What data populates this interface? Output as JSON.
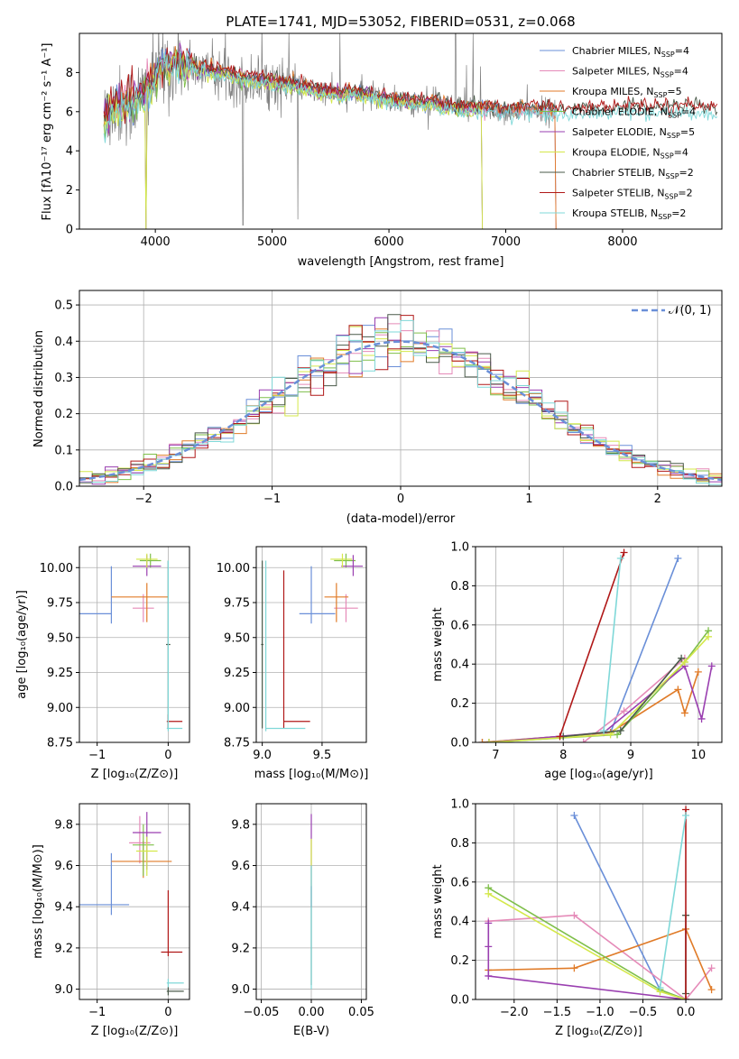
{
  "figure": {
    "colors": {
      "chabrier_miles": "#6a8fd8",
      "salpeter_miles": "#e58ab8",
      "kroupa_miles": "#e07b28",
      "chabrier_elodie": "#7fbf4a",
      "salpeter_elodie": "#9a3fb0",
      "kroupa_elodie": "#d4e84a",
      "chabrier_stelib": "#4a5a4a",
      "salpeter_stelib": "#b01818",
      "kroupa_stelib": "#7fd8d8",
      "data": "#808080"
    }
  },
  "chart_data": [
    {
      "id": "spectrum",
      "type": "line",
      "title": "PLATE=1741, MJD=53052, FIBERID=0531, z=0.068",
      "xlabel": "wavelength [Angstrom, rest frame]",
      "ylabel": "Flux [fλ10⁻¹⁷ erg cm⁻² s⁻¹ A⁻¹]",
      "xlim": [
        3350,
        8850
      ],
      "ylim": [
        0,
        10
      ],
      "xticks": [
        4000,
        5000,
        6000,
        7000,
        8000
      ],
      "yticks": [
        0,
        2,
        4,
        6,
        8
      ],
      "legend_position": "top-right",
      "series": [
        {
          "name": "Chabrier MILES, N_SSP=4",
          "key": "chabrier_miles"
        },
        {
          "name": "Salpeter MILES, N_SSP=4",
          "key": "salpeter_miles"
        },
        {
          "name": "Kroupa MILES, N_SSP=5",
          "key": "kroupa_miles"
        },
        {
          "name": "Chabrier ELODIE, N_SSP=4",
          "key": "chabrier_elodie"
        },
        {
          "name": "Salpeter ELODIE, N_SSP=5",
          "key": "salpeter_elodie"
        },
        {
          "name": "Kroupa ELODIE, N_SSP=4",
          "key": "kroupa_elodie"
        },
        {
          "name": "Chabrier STELIB, N_SSP=2",
          "key": "chabrier_stelib"
        },
        {
          "name": "Salpeter STELIB, N_SSP=2",
          "key": "salpeter_stelib"
        },
        {
          "name": "Kroupa STELIB, N_SSP=2",
          "key": "kroupa_stelib"
        }
      ],
      "legend_labels": [
        {
          "pre": "Chabrier MILES, N",
          "sub": "SSP",
          "post": "=4"
        },
        {
          "pre": "Salpeter MILES, N",
          "sub": "SSP",
          "post": "=4"
        },
        {
          "pre": "Kroupa MILES, N",
          "sub": "SSP",
          "post": "=5"
        },
        {
          "pre": "Chabrier ELODIE, N",
          "sub": "SSP",
          "post": "=4"
        },
        {
          "pre": "Salpeter ELODIE, N",
          "sub": "SSP",
          "post": "=5"
        },
        {
          "pre": "Kroupa ELODIE, N",
          "sub": "SSP",
          "post": "=4"
        },
        {
          "pre": "Chabrier STELIB, N",
          "sub": "SSP",
          "post": "=2"
        },
        {
          "pre": "Salpeter STELIB, N",
          "sub": "SSP",
          "post": "=2"
        },
        {
          "pre": "Kroupa STELIB, N",
          "sub": "SSP",
          "post": "=2"
        }
      ],
      "model_continuum": {
        "x": [
          3560,
          3650,
          3800,
          3950,
          4050,
          4200,
          4400,
          4600,
          4800,
          5000,
          5200,
          5400,
          5600,
          5800,
          6000,
          6200,
          6400,
          6600,
          6800,
          7000,
          7200,
          7400,
          7600,
          7800,
          8000,
          8200,
          8400,
          8600,
          8800
        ],
        "y": [
          5.6,
          6.2,
          6.4,
          7.2,
          8.2,
          8.4,
          8.1,
          7.9,
          7.6,
          7.5,
          7.3,
          7.0,
          6.9,
          6.9,
          6.6,
          6.4,
          6.4,
          6.1,
          6.1,
          6.0,
          6.1,
          6.0,
          6.0,
          6.0,
          6.1,
          6.1,
          6.1,
          6.1,
          6.0
        ]
      }
    },
    {
      "id": "residuals",
      "type": "line",
      "xlabel": "(data-model)/error",
      "ylabel": "Normed distribution",
      "xlim": [
        -2.5,
        2.5
      ],
      "ylim": [
        0,
        0.54
      ],
      "xticks": [
        -2,
        -1,
        0,
        1,
        2
      ],
      "yticks": [
        0.0,
        0.1,
        0.2,
        0.3,
        0.4,
        0.5
      ],
      "grid": true,
      "legend_position": "top-right",
      "legend": "𝒩(0, 1)",
      "reference_curve": "normal pdf, mean 0, sigma 1"
    },
    {
      "id": "age_vs_z",
      "type": "scatter",
      "xlabel": "Z [log₁₀(Z/Z⊙)]",
      "ylabel": "age  [log₁₀(age/yr)]",
      "xlim": [
        -1.25,
        0.3
      ],
      "ylim": [
        8.75,
        10.15
      ],
      "xticks": [
        -1,
        0
      ],
      "yticks": [
        8.75,
        9.0,
        9.25,
        9.5,
        9.75,
        10.0
      ],
      "grid": true,
      "points": [
        {
          "key": "chabrier_miles",
          "x": -0.8,
          "y": 9.67,
          "xerr": [
            0.5,
            0.0
          ],
          "yerr": [
            0.07,
            0.34
          ]
        },
        {
          "key": "salpeter_miles",
          "x": -0.35,
          "y": 9.71,
          "xerr": [
            0.15,
            0.15
          ],
          "yerr": [
            0.1,
            0.1
          ]
        },
        {
          "key": "kroupa_miles",
          "x": -0.3,
          "y": 9.79,
          "xerr": [
            0.5,
            0.3
          ],
          "yerr": [
            0.18,
            0.1
          ]
        },
        {
          "key": "chabrier_elodie",
          "x": -0.25,
          "y": 10.05,
          "xerr": [
            0.15,
            0.15
          ],
          "yerr": [
            0.05,
            0.05
          ]
        },
        {
          "key": "salpeter_elodie",
          "x": -0.3,
          "y": 10.01,
          "xerr": [
            0.2,
            0.2
          ],
          "yerr": [
            0.07,
            0.08
          ]
        },
        {
          "key": "kroupa_elodie",
          "x": -0.3,
          "y": 10.06,
          "xerr": [
            0.15,
            0.15
          ],
          "yerr": [
            0.06,
            0.04
          ]
        },
        {
          "key": "chabrier_stelib",
          "x": 0.0,
          "y": 9.45,
          "xerr": [
            0.03,
            0.03
          ],
          "yerr": [
            0.6,
            0.6
          ]
        },
        {
          "key": "salpeter_stelib",
          "x": 0.0,
          "y": 8.9,
          "xerr": [
            0.02,
            0.2
          ],
          "yerr": [
            0.05,
            0.05
          ]
        },
        {
          "key": "kroupa_stelib",
          "x": 0.0,
          "y": 8.85,
          "xerr": [
            0.02,
            0.2
          ],
          "yerr": [
            0.02,
            1.2
          ]
        }
      ]
    },
    {
      "id": "age_vs_mass",
      "type": "scatter",
      "xlabel": "mass [log₁₀(M/M⊙)]",
      "ylabel": "",
      "xlim": [
        8.95,
        9.87
      ],
      "ylim": [
        8.75,
        10.15
      ],
      "xticks": [
        9.0,
        9.5
      ],
      "yticks": [
        8.75,
        9.0,
        9.25,
        9.5,
        9.75,
        10.0
      ],
      "grid": true,
      "points": [
        {
          "key": "chabrier_miles",
          "x": 9.41,
          "y": 9.67,
          "xerr": [
            0.1,
            0.2
          ],
          "yerr": [
            0.07,
            0.34
          ]
        },
        {
          "key": "salpeter_miles",
          "x": 9.7,
          "y": 9.71,
          "xerr": [
            0.1,
            0.1
          ],
          "yerr": [
            0.1,
            0.1
          ]
        },
        {
          "key": "kroupa_miles",
          "x": 9.62,
          "y": 9.79,
          "xerr": [
            0.1,
            0.1
          ],
          "yerr": [
            0.18,
            0.1
          ]
        },
        {
          "key": "chabrier_elodie",
          "x": 9.7,
          "y": 10.05,
          "xerr": [
            0.1,
            0.08
          ],
          "yerr": [
            0.05,
            0.05
          ]
        },
        {
          "key": "salpeter_elodie",
          "x": 9.76,
          "y": 10.01,
          "xerr": [
            0.1,
            0.08
          ],
          "yerr": [
            0.07,
            0.08
          ]
        },
        {
          "key": "kroupa_elodie",
          "x": 9.67,
          "y": 10.06,
          "xerr": [
            0.1,
            0.08
          ],
          "yerr": [
            0.06,
            0.04
          ]
        },
        {
          "key": "chabrier_stelib",
          "x": 9.0,
          "y": 9.45,
          "xerr": [
            0.01,
            0.01
          ],
          "yerr": [
            0.6,
            0.6
          ]
        },
        {
          "key": "salpeter_stelib",
          "x": 9.18,
          "y": 8.9,
          "xerr": [
            0.0,
            0.22
          ],
          "yerr": [
            0.05,
            1.08
          ]
        },
        {
          "key": "kroupa_stelib",
          "x": 9.03,
          "y": 8.85,
          "xerr": [
            0.0,
            0.33
          ],
          "yerr": [
            0.02,
            1.2
          ]
        }
      ]
    },
    {
      "id": "weight_vs_age",
      "type": "line",
      "xlabel": "age  [log₁₀(age/yr)]",
      "ylabel": "mass weight",
      "xlim": [
        6.7,
        10.35
      ],
      "ylim": [
        0,
        1.0
      ],
      "xticks": [
        7,
        8,
        9,
        10
      ],
      "yticks": [
        0.0,
        0.2,
        0.4,
        0.6,
        0.8,
        1.0
      ],
      "grid": true,
      "series": [
        {
          "key": "chabrier_miles",
          "x": [
            6.8,
            8.7,
            9.7
          ],
          "y": [
            0.0,
            0.05,
            0.94
          ]
        },
        {
          "key": "salpeter_miles",
          "x": [
            8.3,
            8.9,
            9.8
          ],
          "y": [
            0.0,
            0.16,
            0.43
          ]
        },
        {
          "key": "kroupa_miles",
          "x": [
            6.8,
            8.7,
            9.7,
            9.8,
            10.0
          ],
          "y": [
            0.0,
            0.05,
            0.27,
            0.15,
            0.36
          ]
        },
        {
          "key": "chabrier_elodie",
          "x": [
            6.9,
            8.8,
            9.8,
            10.15
          ],
          "y": [
            0.0,
            0.04,
            0.41,
            0.57
          ]
        },
        {
          "key": "salpeter_elodie",
          "x": [
            6.9,
            8.6,
            9.8,
            10.05,
            10.2
          ],
          "y": [
            0.0,
            0.05,
            0.39,
            0.12,
            0.39
          ]
        },
        {
          "key": "kroupa_elodie",
          "x": [
            6.9,
            8.7,
            9.8,
            10.15
          ],
          "y": [
            0.0,
            0.04,
            0.41,
            0.54
          ]
        },
        {
          "key": "chabrier_stelib",
          "x": [
            8.0,
            8.85,
            9.75
          ],
          "y": [
            0.03,
            0.06,
            0.43
          ]
        },
        {
          "key": "salpeter_stelib",
          "x": [
            7.95,
            8.9
          ],
          "y": [
            0.03,
            0.97
          ]
        },
        {
          "key": "kroupa_stelib",
          "x": [
            8.6,
            8.85
          ],
          "y": [
            0.06,
            0.94
          ]
        }
      ]
    },
    {
      "id": "mass_vs_z",
      "type": "scatter",
      "xlabel": "Z [log₁₀(Z/Z⊙)]",
      "ylabel": "mass [log₁₀(M/M⊙)]",
      "xlim": [
        -1.25,
        0.3
      ],
      "ylim": [
        8.95,
        9.9
      ],
      "xticks": [
        -1,
        0
      ],
      "yticks": [
        9.0,
        9.2,
        9.4,
        9.6,
        9.8
      ],
      "grid": true,
      "points": [
        {
          "key": "chabrier_miles",
          "x": -0.8,
          "y": 9.41,
          "xerr": [
            0.5,
            0.25
          ],
          "yerr": [
            0.05,
            0.25
          ]
        },
        {
          "key": "salpeter_miles",
          "x": -0.4,
          "y": 9.71,
          "xerr": [
            0.15,
            0.15
          ],
          "yerr": [
            0.1,
            0.13
          ]
        },
        {
          "key": "kroupa_miles",
          "x": -0.35,
          "y": 9.62,
          "xerr": [
            0.45,
            0.4
          ],
          "yerr": [
            0.08,
            0.1
          ]
        },
        {
          "key": "chabrier_elodie",
          "x": -0.35,
          "y": 9.7,
          "xerr": [
            0.15,
            0.15
          ],
          "yerr": [
            0.15,
            0.1
          ]
        },
        {
          "key": "salpeter_elodie",
          "x": -0.3,
          "y": 9.76,
          "xerr": [
            0.2,
            0.2
          ],
          "yerr": [
            0.18,
            0.1
          ]
        },
        {
          "key": "kroupa_elodie",
          "x": -0.3,
          "y": 9.67,
          "xerr": [
            0.15,
            0.15
          ],
          "yerr": [
            0.12,
            0.07
          ]
        },
        {
          "key": "chabrier_stelib",
          "x": 0.0,
          "y": 8.99,
          "xerr": [
            0.02,
            0.22
          ],
          "yerr": [
            0.02,
            0.02
          ]
        },
        {
          "key": "salpeter_stelib",
          "x": 0.0,
          "y": 9.18,
          "xerr": [
            0.1,
            0.2
          ],
          "yerr": [
            0.02,
            0.3
          ]
        },
        {
          "key": "kroupa_stelib",
          "x": 0.0,
          "y": 9.03,
          "xerr": [
            0.02,
            0.22
          ],
          "yerr": [
            0.02,
            0.02
          ]
        }
      ]
    },
    {
      "id": "mass_vs_ebv",
      "type": "scatter",
      "xlabel": "E(B-V)",
      "ylabel": "",
      "xlim": [
        -0.055,
        0.055
      ],
      "ylim": [
        8.95,
        9.9
      ],
      "xticks": [
        -0.05,
        0.0,
        0.05
      ],
      "xticklabels": [
        "−0.05",
        "0.00",
        "0.05"
      ],
      "yticks": [
        9.0,
        9.2,
        9.4,
        9.6,
        9.8
      ],
      "grid": true,
      "points": [
        {
          "key": "salpeter_elodie",
          "x": 0.0,
          "y": 9.6,
          "xerr": [
            0,
            0
          ],
          "yerr": [
            0.2,
            0.25
          ]
        },
        {
          "key": "kroupa_elodie",
          "x": 0.0,
          "y": 9.6,
          "xerr": [
            0,
            0
          ],
          "yerr": [
            0.1,
            0.13
          ]
        },
        {
          "key": "chabrier_stelib",
          "x": 0.0,
          "y": 9.2,
          "xerr": [
            0,
            0
          ],
          "yerr": [
            0.18,
            0.3
          ]
        },
        {
          "key": "kroupa_stelib",
          "x": 0.0,
          "y": 9.3,
          "xerr": [
            0,
            0
          ],
          "yerr": [
            0.3,
            0.3
          ]
        }
      ]
    },
    {
      "id": "weight_vs_z",
      "type": "line",
      "xlabel": "Z [log₁₀(Z/Z⊙)]",
      "ylabel": "mass weight",
      "xlim": [
        -2.45,
        0.42
      ],
      "ylim": [
        0,
        1.0
      ],
      "xticks": [
        -2.0,
        -1.5,
        -1.0,
        -0.5,
        0.0
      ],
      "xticklabels": [
        "−2.0",
        "−1.5",
        "−1.0",
        "−0.5",
        "0.0"
      ],
      "yticks": [
        0.0,
        0.2,
        0.4,
        0.6,
        0.8,
        1.0
      ],
      "grid": true,
      "series": [
        {
          "key": "chabrier_miles",
          "x": [
            -1.3,
            -0.3,
            0.0
          ],
          "y": [
            0.94,
            0.05,
            0.0
          ]
        },
        {
          "key": "salpeter_miles",
          "x": [
            -2.3,
            -1.3,
            0.0,
            0.3
          ],
          "y": [
            0.4,
            0.43,
            0.0,
            0.16
          ]
        },
        {
          "key": "kroupa_miles",
          "x": [
            -2.3,
            -1.3,
            0.0,
            0.3
          ],
          "y": [
            0.15,
            0.16,
            0.36,
            0.05
          ]
        },
        {
          "key": "chabrier_elodie",
          "x": [
            -2.3,
            -0.3,
            0.0
          ],
          "y": [
            0.57,
            0.05,
            0.0
          ]
        },
        {
          "key": "salpeter_elodie",
          "x": [
            -2.3,
            -2.3,
            -2.3,
            0.0,
            0.0
          ],
          "y": [
            0.39,
            0.27,
            0.12,
            0.0,
            0.0
          ]
        },
        {
          "key": "kroupa_elodie",
          "x": [
            -2.3,
            -0.3,
            0.0
          ],
          "y": [
            0.54,
            0.04,
            0.0
          ]
        },
        {
          "key": "chabrier_stelib",
          "x": [
            0.0,
            0.0
          ],
          "y": [
            0.03,
            0.43
          ]
        },
        {
          "key": "salpeter_stelib",
          "x": [
            0.0,
            0.0
          ],
          "y": [
            0.0,
            0.97
          ]
        },
        {
          "key": "kroupa_stelib",
          "x": [
            -0.3,
            0.0
          ],
          "y": [
            0.06,
            0.94
          ]
        }
      ]
    }
  ]
}
